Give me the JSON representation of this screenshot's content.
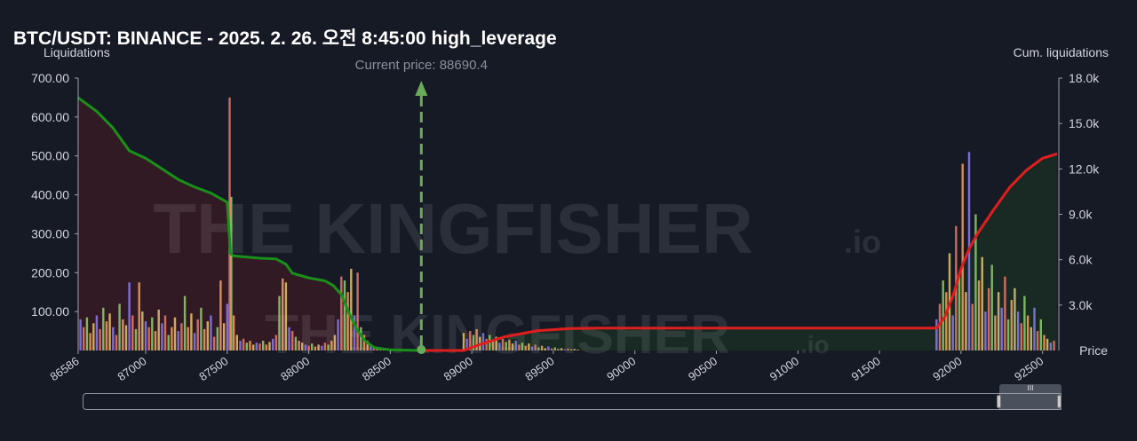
{
  "title": "BTC/USDT: BINANCE - 2025. 2. 26. 오전 8:45:00 high_leverage",
  "current_price_label": "Current price: 88690.4",
  "watermark_text": "THE KINGFISHER",
  "watermark_suffix": ".io",
  "colors": {
    "background": "#161a25",
    "cum_long_line": "#1a8f1a",
    "cum_short_line": "#e01e1e",
    "long_fill": "#3a1a24",
    "short_fill": "#1a2e24",
    "current_price_line": "#6aaa5a",
    "bar_palette": [
      "#f07a6a",
      "#e9c46a",
      "#8fd16a",
      "#8c7ef0",
      "#f4a261"
    ]
  },
  "chart_data": {
    "type": "bar",
    "title": "BTC/USDT: BINANCE - 2025. 2. 26. 오전 8:45:00 high_leverage",
    "xlabel": "Price",
    "ylabel": "Liquidations",
    "y2label": "Cum. liquidations",
    "xlim": [
      86586,
      92600
    ],
    "ylim": [
      0,
      700
    ],
    "y2lim": [
      0,
      18000
    ],
    "x_ticks": [
      "86586",
      "87000",
      "87500",
      "88000",
      "88500",
      "89000",
      "89500",
      "90000",
      "90500",
      "91000",
      "91500",
      "92000",
      "92500"
    ],
    "y_ticks": [
      "100.00",
      "200.00",
      "300.00",
      "400.00",
      "500.00",
      "600.00",
      "700.00"
    ],
    "y2_ticks": [
      "3.0k",
      "6.0k",
      "9.0k",
      "12.0k",
      "15.0k",
      "18.0k"
    ],
    "current_price": 88690.4,
    "bars": [
      {
        "x": 86600,
        "y": 80
      },
      {
        "x": 86620,
        "y": 60
      },
      {
        "x": 86640,
        "y": 85
      },
      {
        "x": 86660,
        "y": 45
      },
      {
        "x": 86680,
        "y": 70
      },
      {
        "x": 86700,
        "y": 90
      },
      {
        "x": 86720,
        "y": 55
      },
      {
        "x": 86740,
        "y": 110
      },
      {
        "x": 86760,
        "y": 75
      },
      {
        "x": 86780,
        "y": 95
      },
      {
        "x": 86800,
        "y": 60
      },
      {
        "x": 86820,
        "y": 40
      },
      {
        "x": 86840,
        "y": 120
      },
      {
        "x": 86860,
        "y": 80
      },
      {
        "x": 86880,
        "y": 65
      },
      {
        "x": 86900,
        "y": 175
      },
      {
        "x": 86920,
        "y": 90
      },
      {
        "x": 86940,
        "y": 55
      },
      {
        "x": 86960,
        "y": 175
      },
      {
        "x": 86980,
        "y": 100
      },
      {
        "x": 87000,
        "y": 75
      },
      {
        "x": 87020,
        "y": 60
      },
      {
        "x": 87040,
        "y": 85
      },
      {
        "x": 87060,
        "y": 50
      },
      {
        "x": 87080,
        "y": 105
      },
      {
        "x": 87100,
        "y": 70
      },
      {
        "x": 87120,
        "y": 90
      },
      {
        "x": 87140,
        "y": 40
      },
      {
        "x": 87160,
        "y": 60
      },
      {
        "x": 87180,
        "y": 85
      },
      {
        "x": 87200,
        "y": 50
      },
      {
        "x": 87220,
        "y": 70
      },
      {
        "x": 87240,
        "y": 140
      },
      {
        "x": 87260,
        "y": 60
      },
      {
        "x": 87280,
        "y": 95
      },
      {
        "x": 87300,
        "y": 45
      },
      {
        "x": 87320,
        "y": 80
      },
      {
        "x": 87340,
        "y": 110
      },
      {
        "x": 87360,
        "y": 55
      },
      {
        "x": 87380,
        "y": 75
      },
      {
        "x": 87400,
        "y": 90
      },
      {
        "x": 87420,
        "y": 35
      },
      {
        "x": 87440,
        "y": 60
      },
      {
        "x": 87460,
        "y": 180
      },
      {
        "x": 87480,
        "y": 70
      },
      {
        "x": 87500,
        "y": 120
      },
      {
        "x": 87515,
        "y": 650
      },
      {
        "x": 87525,
        "y": 395
      },
      {
        "x": 87540,
        "y": 90
      },
      {
        "x": 87560,
        "y": 40
      },
      {
        "x": 87580,
        "y": 25
      },
      {
        "x": 87600,
        "y": 30
      },
      {
        "x": 87620,
        "y": 20
      },
      {
        "x": 87640,
        "y": 25
      },
      {
        "x": 87660,
        "y": 15
      },
      {
        "x": 87680,
        "y": 20
      },
      {
        "x": 87700,
        "y": 18
      },
      {
        "x": 87720,
        "y": 25
      },
      {
        "x": 87740,
        "y": 15
      },
      {
        "x": 87760,
        "y": 22
      },
      {
        "x": 87780,
        "y": 30
      },
      {
        "x": 87800,
        "y": 40
      },
      {
        "x": 87820,
        "y": 140
      },
      {
        "x": 87840,
        "y": 185
      },
      {
        "x": 87860,
        "y": 175
      },
      {
        "x": 87880,
        "y": 60
      },
      {
        "x": 87900,
        "y": 50
      },
      {
        "x": 87920,
        "y": 35
      },
      {
        "x": 87940,
        "y": 25
      },
      {
        "x": 87960,
        "y": 20
      },
      {
        "x": 87980,
        "y": 15
      },
      {
        "x": 88000,
        "y": 12
      },
      {
        "x": 88020,
        "y": 18
      },
      {
        "x": 88040,
        "y": 10
      },
      {
        "x": 88060,
        "y": 15
      },
      {
        "x": 88080,
        "y": 12
      },
      {
        "x": 88100,
        "y": 20
      },
      {
        "x": 88120,
        "y": 15
      },
      {
        "x": 88140,
        "y": 25
      },
      {
        "x": 88160,
        "y": 40
      },
      {
        "x": 88180,
        "y": 80
      },
      {
        "x": 88200,
        "y": 190
      },
      {
        "x": 88220,
        "y": 180
      },
      {
        "x": 88240,
        "y": 150
      },
      {
        "x": 88260,
        "y": 210
      },
      {
        "x": 88280,
        "y": 90
      },
      {
        "x": 88300,
        "y": 200
      },
      {
        "x": 88320,
        "y": 60
      },
      {
        "x": 88340,
        "y": 40
      },
      {
        "x": 88360,
        "y": 25
      },
      {
        "x": 88380,
        "y": 15
      },
      {
        "x": 88400,
        "y": 10
      },
      {
        "x": 88420,
        "y": 8
      },
      {
        "x": 88440,
        "y": 6
      },
      {
        "x": 88460,
        "y": 5
      },
      {
        "x": 88480,
        "y": 4
      },
      {
        "x": 88500,
        "y": 3
      },
      {
        "x": 88550,
        "y": 3
      },
      {
        "x": 88600,
        "y": 2
      },
      {
        "x": 88950,
        "y": 45
      },
      {
        "x": 88970,
        "y": 30
      },
      {
        "x": 88990,
        "y": 50
      },
      {
        "x": 89010,
        "y": 40
      },
      {
        "x": 89030,
        "y": 55
      },
      {
        "x": 89050,
        "y": 35
      },
      {
        "x": 89070,
        "y": 45
      },
      {
        "x": 89090,
        "y": 30
      },
      {
        "x": 89110,
        "y": 40
      },
      {
        "x": 89130,
        "y": 25
      },
      {
        "x": 89150,
        "y": 35
      },
      {
        "x": 89170,
        "y": 20
      },
      {
        "x": 89190,
        "y": 30
      },
      {
        "x": 89210,
        "y": 22
      },
      {
        "x": 89230,
        "y": 28
      },
      {
        "x": 89250,
        "y": 18
      },
      {
        "x": 89270,
        "y": 25
      },
      {
        "x": 89290,
        "y": 15
      },
      {
        "x": 89310,
        "y": 20
      },
      {
        "x": 89330,
        "y": 12
      },
      {
        "x": 89350,
        "y": 18
      },
      {
        "x": 89370,
        "y": 10
      },
      {
        "x": 89390,
        "y": 15
      },
      {
        "x": 89410,
        "y": 8
      },
      {
        "x": 89430,
        "y": 12
      },
      {
        "x": 89450,
        "y": 6
      },
      {
        "x": 89470,
        "y": 10
      },
      {
        "x": 89490,
        "y": 5
      },
      {
        "x": 89510,
        "y": 8
      },
      {
        "x": 89530,
        "y": 4
      },
      {
        "x": 89550,
        "y": 6
      },
      {
        "x": 89570,
        "y": 3
      },
      {
        "x": 89590,
        "y": 5
      },
      {
        "x": 89610,
        "y": 3
      },
      {
        "x": 89630,
        "y": 4
      },
      {
        "x": 89650,
        "y": 2
      },
      {
        "x": 91850,
        "y": 80
      },
      {
        "x": 91870,
        "y": 120
      },
      {
        "x": 91890,
        "y": 180
      },
      {
        "x": 91910,
        "y": 150
      },
      {
        "x": 91930,
        "y": 250
      },
      {
        "x": 91950,
        "y": 90
      },
      {
        "x": 91970,
        "y": 320
      },
      {
        "x": 91990,
        "y": 200
      },
      {
        "x": 92010,
        "y": 480
      },
      {
        "x": 92030,
        "y": 150
      },
      {
        "x": 92050,
        "y": 510
      },
      {
        "x": 92070,
        "y": 120
      },
      {
        "x": 92090,
        "y": 350
      },
      {
        "x": 92110,
        "y": 180
      },
      {
        "x": 92130,
        "y": 240
      },
      {
        "x": 92150,
        "y": 100
      },
      {
        "x": 92170,
        "y": 160
      },
      {
        "x": 92190,
        "y": 220
      },
      {
        "x": 92210,
        "y": 90
      },
      {
        "x": 92230,
        "y": 150
      },
      {
        "x": 92250,
        "y": 110
      },
      {
        "x": 92270,
        "y": 190
      },
      {
        "x": 92290,
        "y": 80
      },
      {
        "x": 92310,
        "y": 130
      },
      {
        "x": 92330,
        "y": 160
      },
      {
        "x": 92350,
        "y": 100
      },
      {
        "x": 92370,
        "y": 70
      },
      {
        "x": 92390,
        "y": 140
      },
      {
        "x": 92410,
        "y": 90
      },
      {
        "x": 92430,
        "y": 60
      },
      {
        "x": 92450,
        "y": 110
      },
      {
        "x": 92470,
        "y": 50
      },
      {
        "x": 92490,
        "y": 80
      },
      {
        "x": 92510,
        "y": 40
      },
      {
        "x": 92530,
        "y": 30
      },
      {
        "x": 92550,
        "y": 20
      },
      {
        "x": 92570,
        "y": 25
      }
    ],
    "series": [
      {
        "values": [
          [
            86586,
            16700
          ],
          [
            86700,
            15800
          ],
          [
            86800,
            14700
          ],
          [
            86900,
            13200
          ],
          [
            87000,
            12700
          ],
          [
            87100,
            12000
          ],
          [
            87200,
            11300
          ],
          [
            87300,
            10800
          ],
          [
            87400,
            10400
          ],
          [
            87500,
            9800
          ],
          [
            87520,
            6400
          ],
          [
            87540,
            6250
          ],
          [
            87700,
            6100
          ],
          [
            87800,
            6050
          ],
          [
            87860,
            5700
          ],
          [
            87900,
            5100
          ],
          [
            88000,
            4800
          ],
          [
            88100,
            4600
          ],
          [
            88150,
            4300
          ],
          [
            88200,
            3700
          ],
          [
            88250,
            2400
          ],
          [
            88300,
            1300
          ],
          [
            88350,
            600
          ],
          [
            88400,
            200
          ],
          [
            88500,
            40
          ],
          [
            88690,
            0
          ]
        ]
      },
      {
        "values": [
          [
            88690,
            0
          ],
          [
            88950,
            0
          ],
          [
            89050,
            400
          ],
          [
            89200,
            900
          ],
          [
            89400,
            1300
          ],
          [
            89600,
            1450
          ],
          [
            89800,
            1480
          ],
          [
            90500,
            1480
          ],
          [
            91000,
            1480
          ],
          [
            91500,
            1480
          ],
          [
            91850,
            1480
          ],
          [
            91900,
            2200
          ],
          [
            91950,
            3600
          ],
          [
            92000,
            5400
          ],
          [
            92050,
            6700
          ],
          [
            92100,
            7700
          ],
          [
            92200,
            9300
          ],
          [
            92300,
            10800
          ],
          [
            92400,
            11900
          ],
          [
            92500,
            12700
          ],
          [
            92590,
            13000
          ]
        ]
      }
    ]
  },
  "range_slider": {
    "grip_label": "III"
  }
}
